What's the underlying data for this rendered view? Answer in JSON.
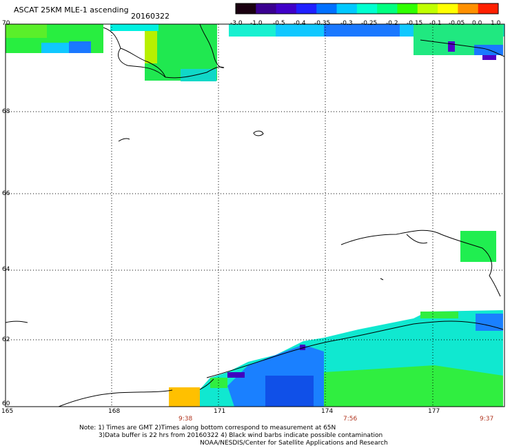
{
  "header": {
    "title": "ASCAT 25KM MLE-1 ascending",
    "date": "20160322"
  },
  "colorbar": {
    "labels": [
      "-3.0",
      "-1.0",
      "-0.5",
      "-0.4",
      "-0.35",
      "-0.3",
      "-0.25",
      "-0.2",
      "-0.15",
      "-0.1",
      "-0.05",
      "0.0",
      "1.0"
    ],
    "colors": [
      "#1a0010",
      "#3a0090",
      "#4000c8",
      "#2020ff",
      "#0070ff",
      "#00c8ff",
      "#00ffd0",
      "#00ff80",
      "#30ff00",
      "#c0ff00",
      "#ffff00",
      "#ff9000",
      "#ff2000"
    ]
  },
  "axes": {
    "lat_labels": [
      "70",
      "68",
      "66",
      "64",
      "62",
      "60"
    ],
    "lon_labels": [
      "165",
      "168",
      "171",
      "174",
      "177"
    ]
  },
  "times": [
    "9:38",
    "7:56",
    "9:37"
  ],
  "notes": {
    "line1": "Note: 1) Times are GMT 2)Times along bottom correspond to measurement at 65N",
    "line2": "3)Data buffer is 22 hrs from 20160322 4) Black wind barbs indicate possible contamination",
    "line3": "NOAA/NESDIS/Center for Satellite Applications and Research"
  }
}
